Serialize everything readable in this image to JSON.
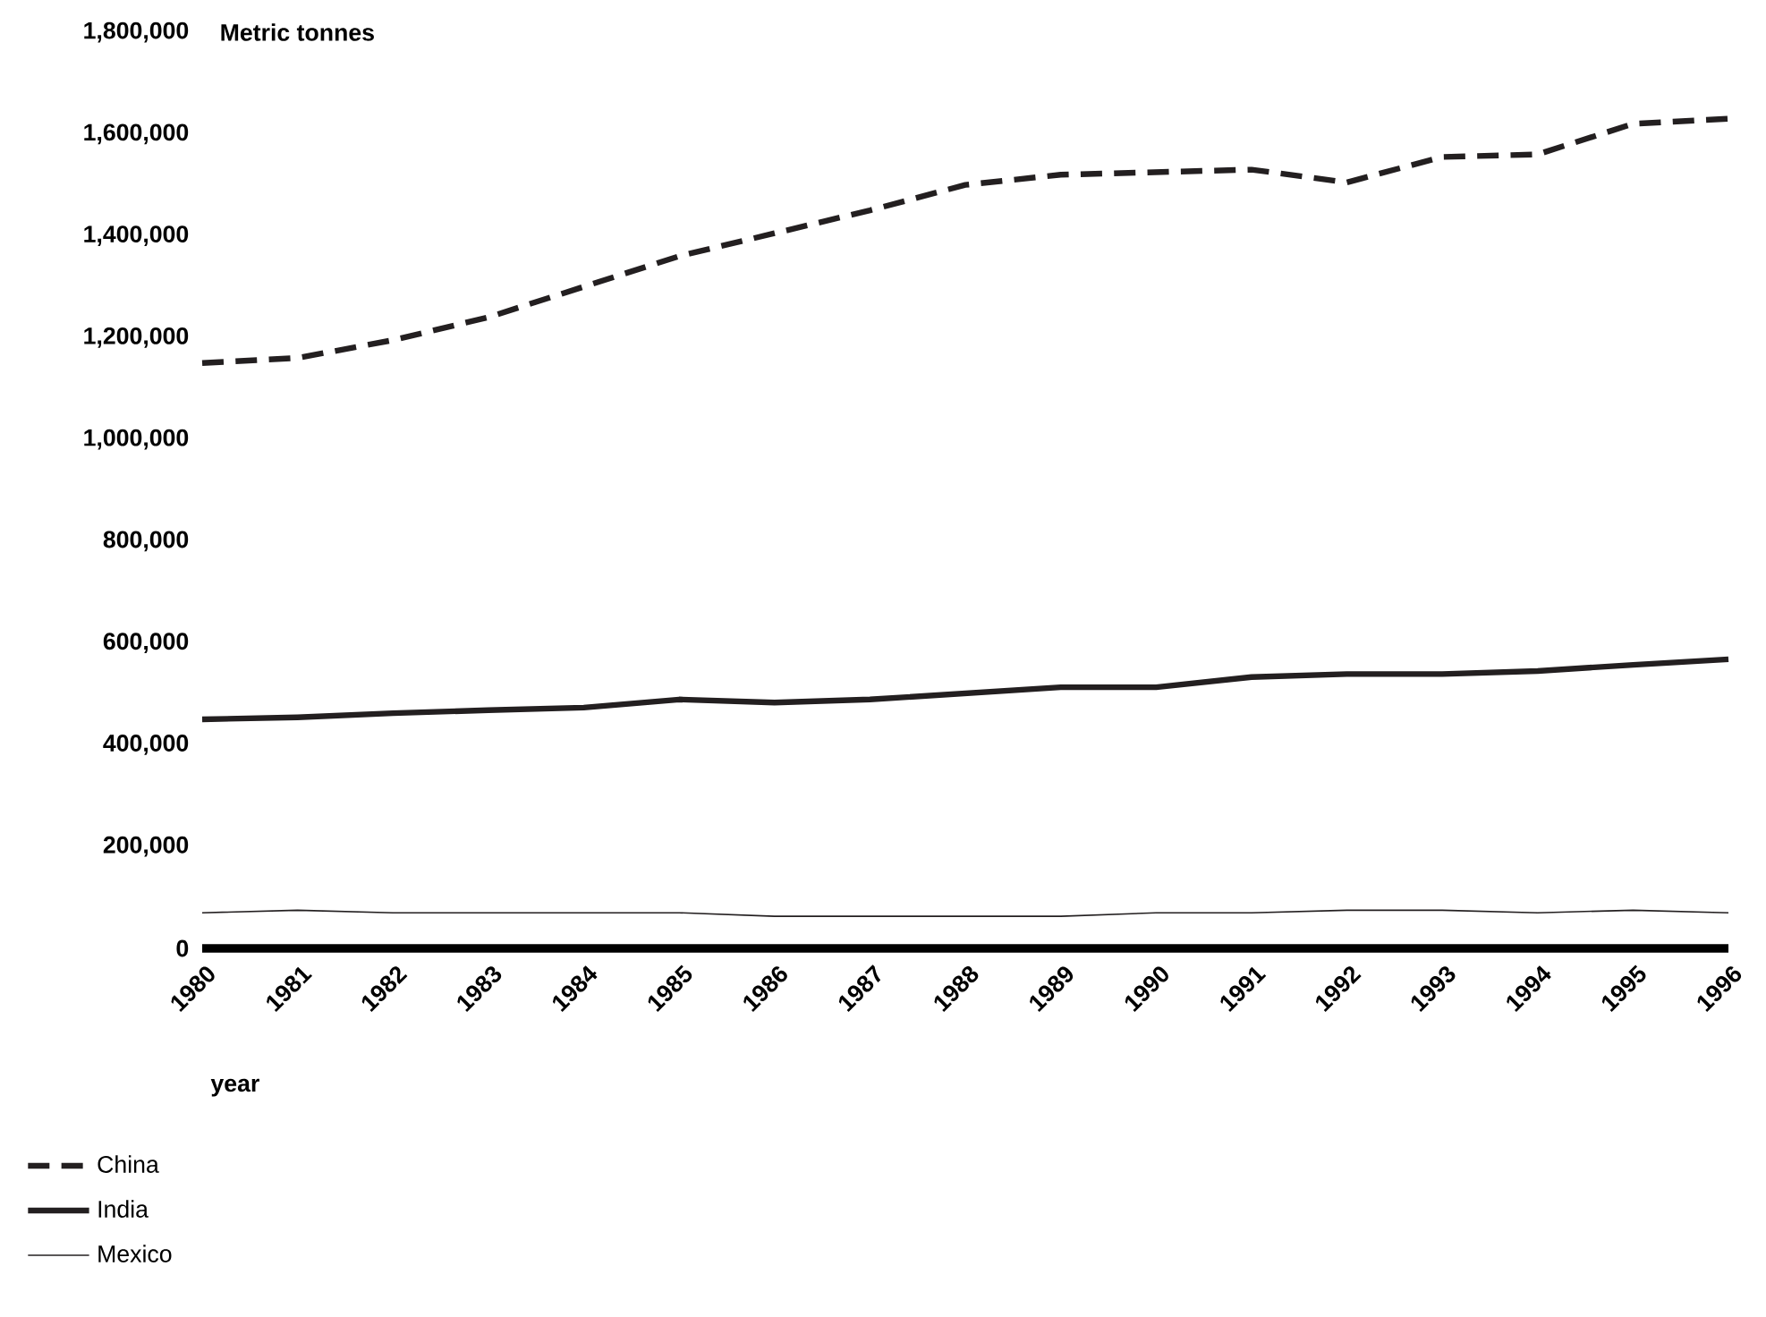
{
  "chart_data": {
    "type": "line",
    "ylabel": "Metric tonnes",
    "xlabel": "year",
    "categories": [
      "1980",
      "1981",
      "1982",
      "1983",
      "1984",
      "1985",
      "1986",
      "1987",
      "1988",
      "1989",
      "1990",
      "1991",
      "1992",
      "1993",
      "1994",
      "1995",
      "1996"
    ],
    "series": [
      {
        "name": "China",
        "color": "#231f20",
        "line_style": "dashed",
        "values": [
          1150000,
          1160000,
          1195000,
          1240000,
          1300000,
          1360000,
          1405000,
          1450000,
          1500000,
          1520000,
          1525000,
          1530000,
          1505000,
          1555000,
          1560000,
          1620000,
          1630000
        ]
      },
      {
        "name": "India",
        "color": "#231f20",
        "line_style": "solid",
        "values": [
          450000,
          454000,
          462000,
          468000,
          473000,
          489000,
          483000,
          489000,
          501000,
          513000,
          513000,
          533000,
          539000,
          539000,
          545000,
          557000,
          568000
        ]
      },
      {
        "name": "Mexico",
        "color": "#231f20",
        "line_style": "solid",
        "values": [
          70000,
          75000,
          70000,
          70000,
          70000,
          70000,
          63000,
          63000,
          63000,
          63000,
          70000,
          70000,
          75000,
          75000,
          70000,
          75000,
          70000
        ]
      }
    ],
    "ylim": [
      0,
      1800000
    ],
    "yticks": [
      0,
      {
        "value": 200000,
        "label": "200,000"
      },
      {
        "value": 400000,
        "label": "400,000"
      },
      {
        "value": 600000,
        "label": "600,000"
      },
      {
        "value": 800000,
        "label": "800,000"
      },
      {
        "value": 1000000,
        "label": "1,000,000"
      },
      {
        "value": 1200000,
        "label": "1,200,000"
      },
      {
        "value": 1400000,
        "label": "1,400,000"
      },
      {
        "value": 1600000,
        "label": "1,600,000"
      },
      {
        "value": 1800000,
        "label": "1,800,000"
      }
    ],
    "grid": false,
    "legend": "bottom left",
    "marker": "none"
  }
}
